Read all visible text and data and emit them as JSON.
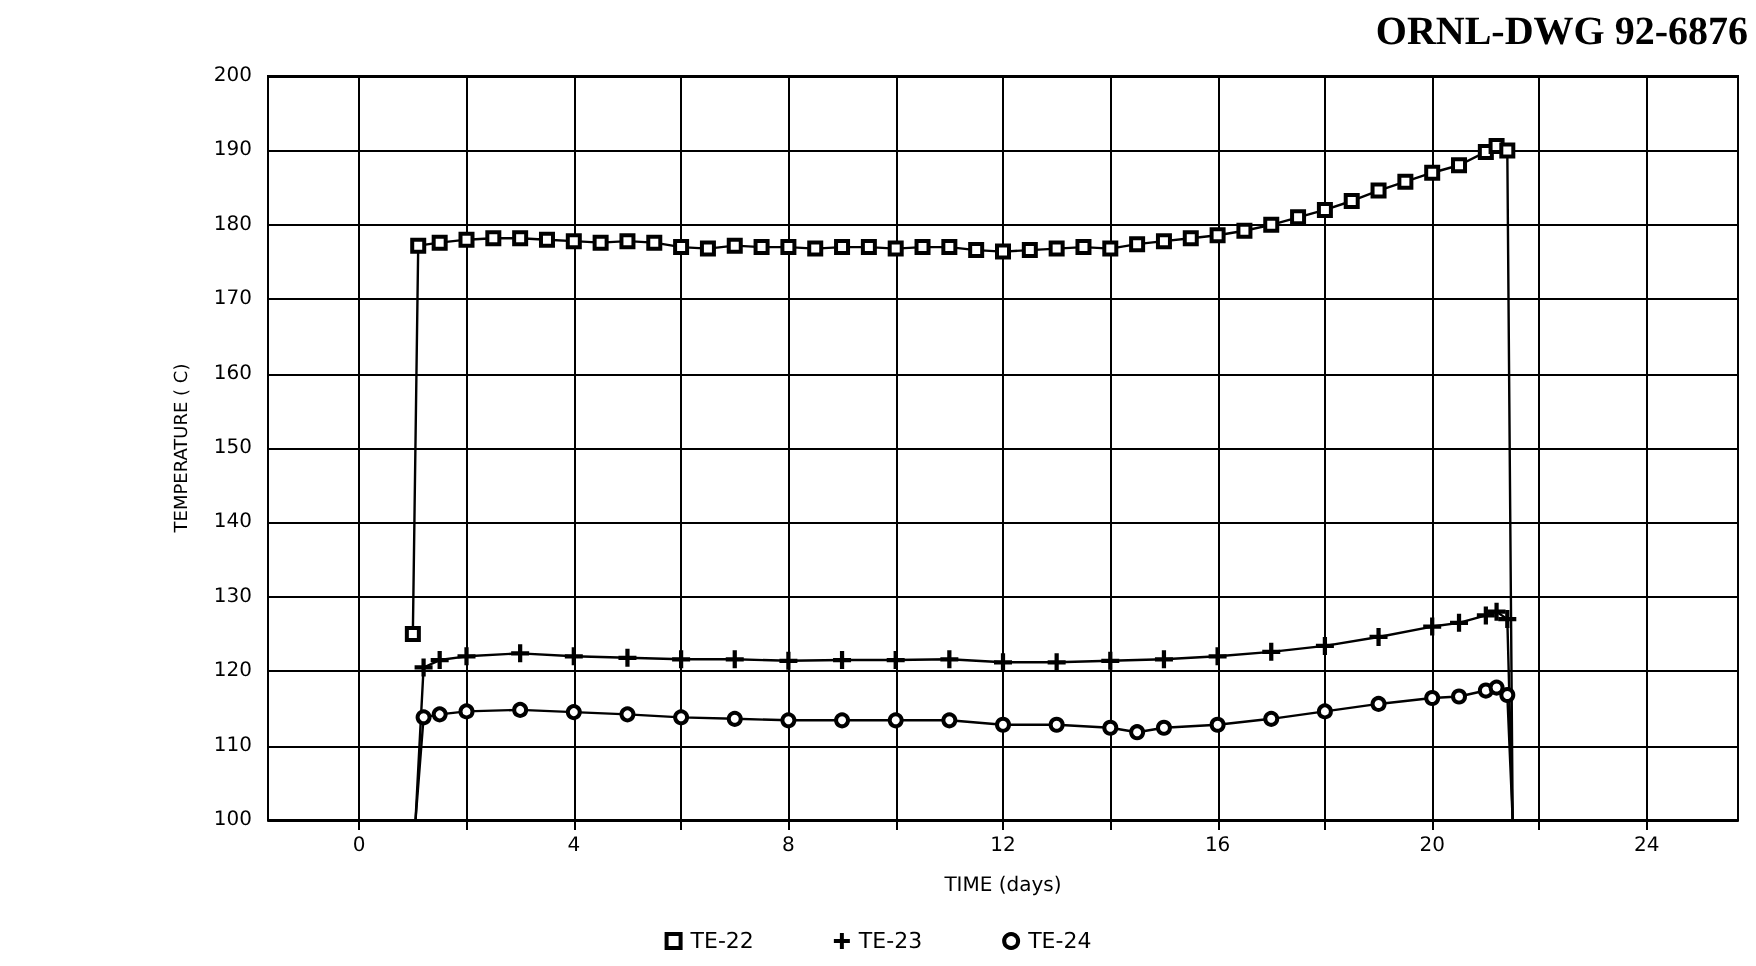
{
  "chart_data": {
    "type": "line",
    "annotations": [
      "ORNL-DWG 92-6876"
    ],
    "xlabel": "TIME (days)",
    "ylabel": "TEMPERATURE ( C)",
    "xlim": [
      -1.7,
      25.7
    ],
    "xticks": [
      0,
      {
        "value": 2,
        "label": null
      },
      4,
      {
        "value": 6,
        "label": null
      },
      8,
      {
        "value": 10,
        "label": null
      },
      12,
      {
        "value": 14,
        "label": null
      },
      16,
      {
        "value": 18,
        "label": null
      },
      20,
      {
        "value": 22,
        "label": null
      },
      24
    ],
    "ylim": [
      100,
      200
    ],
    "yticks": [
      100,
      110,
      120,
      130,
      140,
      150,
      160,
      170,
      180,
      190,
      200
    ],
    "grid": true,
    "legend": "bottom",
    "line_style": "solid",
    "series": [
      {
        "name": "TE-22",
        "color": "#000000",
        "marker": "square",
        "x": [
          1.0,
          1.1,
          1.5,
          2,
          2.5,
          3,
          3.5,
          4,
          4.5,
          5,
          5.5,
          6,
          6.5,
          7,
          7.5,
          8,
          8.5,
          9,
          9.5,
          10,
          10.5,
          11,
          11.5,
          12,
          12.5,
          13,
          13.5,
          14,
          14.5,
          15,
          15.5,
          16,
          16.5,
          17,
          17.5,
          18,
          18.5,
          19,
          19.5,
          20,
          20.5,
          21,
          21.2,
          21.4,
          21.5
        ],
        "values": [
          125,
          177.2,
          177.6,
          178,
          178.2,
          178.2,
          178,
          177.8,
          177.6,
          177.8,
          177.6,
          177,
          176.8,
          177.2,
          177,
          177,
          176.8,
          177,
          177,
          176.8,
          177,
          177,
          176.6,
          176.4,
          176.6,
          176.8,
          177,
          176.8,
          177.4,
          177.8,
          178.2,
          178.6,
          179.2,
          180,
          181,
          182,
          183.2,
          184.6,
          185.8,
          187,
          188,
          189.8,
          190.6,
          190,
          100
        ]
      },
      {
        "name": "TE-23",
        "color": "#000000",
        "marker": "cross",
        "x": [
          1.05,
          1.2,
          1.5,
          2,
          3,
          4,
          5,
          6,
          7,
          8,
          9,
          10,
          11,
          12,
          13,
          14,
          15,
          16,
          17,
          18,
          19,
          20,
          20.5,
          21,
          21.2,
          21.4,
          21.5
        ],
        "values": [
          100,
          120.5,
          121.5,
          122,
          122.4,
          122,
          121.8,
          121.6,
          121.6,
          121.4,
          121.5,
          121.5,
          121.6,
          121.2,
          121.2,
          121.4,
          121.6,
          122,
          122.6,
          123.4,
          124.6,
          126,
          126.5,
          127.5,
          128,
          127,
          100
        ]
      },
      {
        "name": "TE-24",
        "color": "#000000",
        "marker": "circle",
        "x": [
          1.05,
          1.2,
          1.5,
          2,
          3,
          4,
          5,
          6,
          7,
          8,
          9,
          10,
          11,
          12,
          13,
          14,
          14.5,
          15,
          16,
          17,
          18,
          19,
          20,
          20.5,
          21,
          21.2,
          21.4,
          21.5
        ],
        "values": [
          100,
          113.8,
          114.2,
          114.6,
          114.8,
          114.5,
          114.2,
          113.8,
          113.6,
          113.4,
          113.4,
          113.4,
          113.4,
          112.8,
          112.8,
          112.4,
          111.8,
          112.4,
          112.8,
          113.6,
          114.6,
          115.6,
          116.4,
          116.6,
          117.4,
          117.8,
          116.8,
          100
        ]
      }
    ]
  }
}
